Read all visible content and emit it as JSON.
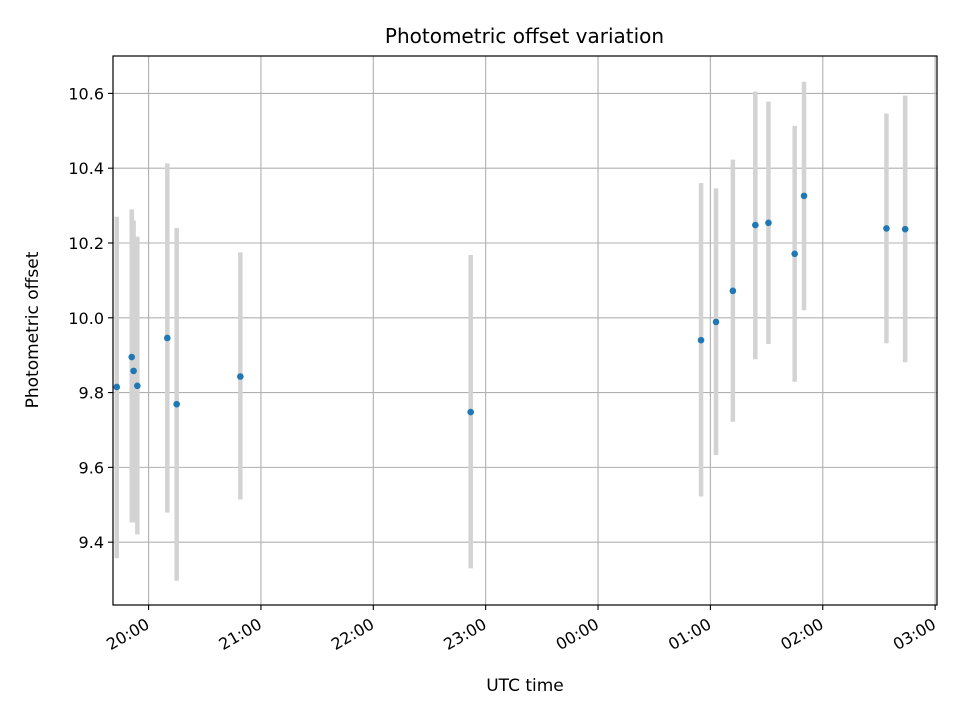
{
  "chart_data": {
    "type": "scatter",
    "title": "Photometric offset variation",
    "xlabel": "UTC time",
    "ylabel": "Photometric offset",
    "grid": true,
    "x_axis": "time",
    "xlim": [
      "19:41",
      "27:01"
    ],
    "ylim": [
      9.232,
      10.7
    ],
    "x_ticks": [
      "20:00",
      "21:00",
      "22:00",
      "23:00",
      "00:00",
      "01:00",
      "02:00",
      "03:00"
    ],
    "y_ticks": [
      "9.4",
      "9.6",
      "9.8",
      "10.0",
      "10.2",
      "10.4",
      "10.6"
    ],
    "y_tick_values": [
      9.4,
      9.6,
      9.8,
      10.0,
      10.2,
      10.4,
      10.6
    ],
    "colors": {
      "point": "#1f77b4",
      "errorbar": "#d3d3d3",
      "grid": "#b0b0b0"
    },
    "points": [
      {
        "time": "19:43",
        "y": 9.815,
        "ylow": 9.357,
        "yhigh": 10.27
      },
      {
        "time": "19:51",
        "y": 9.895,
        "ylow": 9.453,
        "yhigh": 10.29
      },
      {
        "time": "19:52",
        "y": 9.858,
        "ylow": 9.453,
        "yhigh": 10.26
      },
      {
        "time": "19:54",
        "y": 9.818,
        "ylow": 9.421,
        "yhigh": 10.217
      },
      {
        "time": "20:10",
        "y": 9.946,
        "ylow": 9.479,
        "yhigh": 10.413
      },
      {
        "time": "20:15",
        "y": 9.769,
        "ylow": 9.297,
        "yhigh": 10.24
      },
      {
        "time": "20:49",
        "y": 9.843,
        "ylow": 9.514,
        "yhigh": 10.175
      },
      {
        "time": "22:52",
        "y": 9.748,
        "ylow": 9.33,
        "yhigh": 10.168
      },
      {
        "time": "24:55",
        "y": 9.94,
        "ylow": 9.522,
        "yhigh": 10.36
      },
      {
        "time": "25:03",
        "y": 9.989,
        "ylow": 9.633,
        "yhigh": 10.346
      },
      {
        "time": "25:12",
        "y": 10.072,
        "ylow": 9.722,
        "yhigh": 10.423
      },
      {
        "time": "25:24",
        "y": 10.248,
        "ylow": 9.889,
        "yhigh": 10.605
      },
      {
        "time": "25:31",
        "y": 10.254,
        "ylow": 9.93,
        "yhigh": 10.578
      },
      {
        "time": "25:45",
        "y": 10.171,
        "ylow": 9.829,
        "yhigh": 10.513
      },
      {
        "time": "25:50",
        "y": 10.326,
        "ylow": 10.02,
        "yhigh": 10.631
      },
      {
        "time": "26:34",
        "y": 10.239,
        "ylow": 9.932,
        "yhigh": 10.546
      },
      {
        "time": "26:44",
        "y": 10.237,
        "ylow": 9.881,
        "yhigh": 10.594
      }
    ]
  }
}
